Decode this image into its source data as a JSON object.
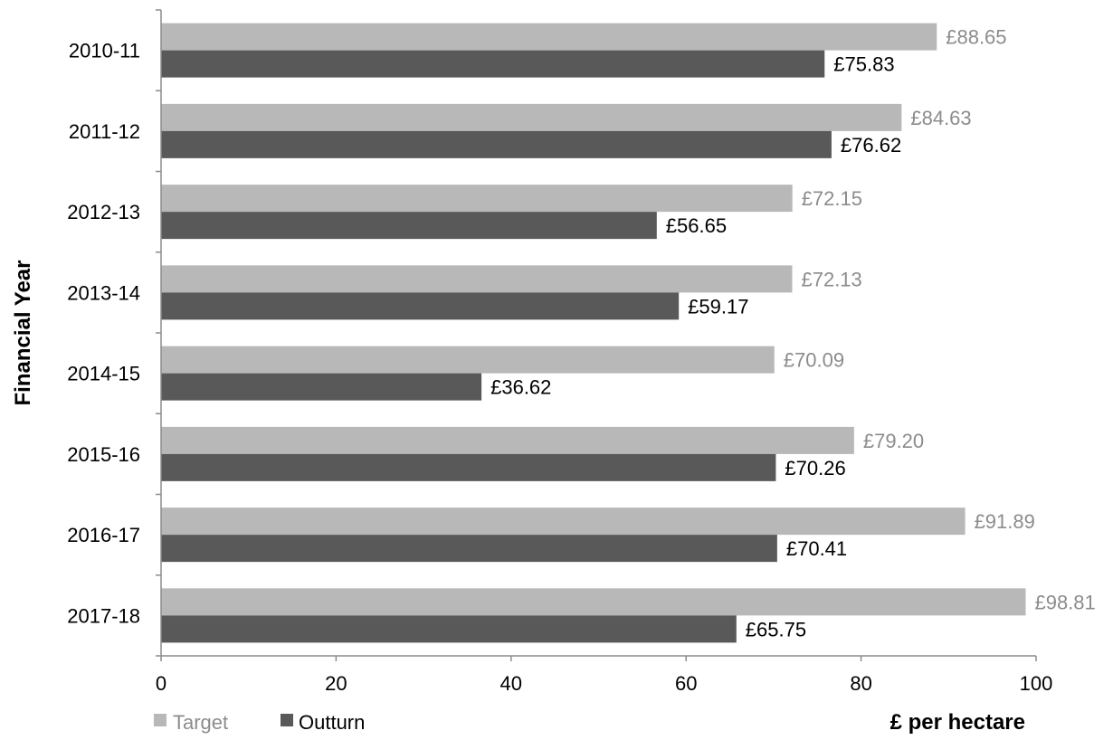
{
  "chart_data": {
    "type": "bar",
    "orientation": "horizontal",
    "categories": [
      "2010-11",
      "2011-12",
      "2012-13",
      "2013-14",
      "2014-15",
      "2015-16",
      "2016-17",
      "2017-18"
    ],
    "series": [
      {
        "name": "Target",
        "color": "#b8b8b8",
        "label_color": "#8c8c8c",
        "values": [
          88.65,
          84.63,
          72.15,
          72.13,
          70.09,
          79.2,
          91.89,
          98.81
        ],
        "labels": [
          "£88.65",
          "£84.63",
          "£72.15",
          "£72.13",
          "£70.09",
          "£79.20",
          "£91.89",
          "£98.81"
        ]
      },
      {
        "name": "Outturn",
        "color": "#595959",
        "label_color": "#000000",
        "values": [
          75.83,
          76.62,
          56.65,
          59.17,
          36.62,
          70.26,
          70.41,
          65.75
        ],
        "labels": [
          "£75.83",
          "£76.62",
          "£56.65",
          "£59.17",
          "£36.62",
          "£70.26",
          "£70.41",
          "£65.75"
        ]
      }
    ],
    "xlabel": "£ per hectare",
    "ylabel": "Financial Year",
    "xlim": [
      0,
      100
    ],
    "xticks": [
      0,
      20,
      40,
      60,
      80,
      100
    ],
    "xtick_labels": [
      "0",
      "20",
      "40",
      "60",
      "80",
      "100"
    ],
    "grid": false,
    "legend_position": "bottom-left"
  }
}
